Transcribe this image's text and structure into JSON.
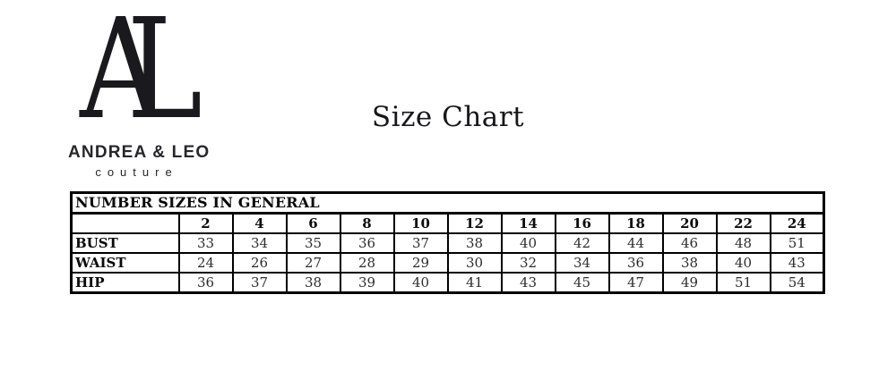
{
  "title": "Size Chart",
  "logo": {
    "monogram_a": "A",
    "monogram_l": "L",
    "brand_name": "ANDREA & LEO",
    "brand_sub": "couture"
  },
  "chart_data": {
    "type": "table",
    "title": "Size Chart",
    "section_header": "NUMBER SIZES IN GENERAL",
    "sizes": [
      "2",
      "4",
      "6",
      "8",
      "10",
      "12",
      "14",
      "16",
      "18",
      "20",
      "22",
      "24"
    ],
    "rows": [
      {
        "label": "BUST",
        "values": [
          "33",
          "34",
          "35",
          "36",
          "37",
          "38",
          "40",
          "42",
          "44",
          "46",
          "48",
          "51"
        ]
      },
      {
        "label": "WAIST",
        "values": [
          "24",
          "26",
          "27",
          "28",
          "29",
          "30",
          "32",
          "34",
          "36",
          "38",
          "40",
          "43"
        ]
      },
      {
        "label": "HIP",
        "values": [
          "36",
          "37",
          "38",
          "39",
          "40",
          "41",
          "43",
          "45",
          "47",
          "49",
          "51",
          "54"
        ]
      }
    ]
  },
  "colors": {
    "background": "#ffffff",
    "text": "#111111",
    "table_border": "#000000"
  }
}
